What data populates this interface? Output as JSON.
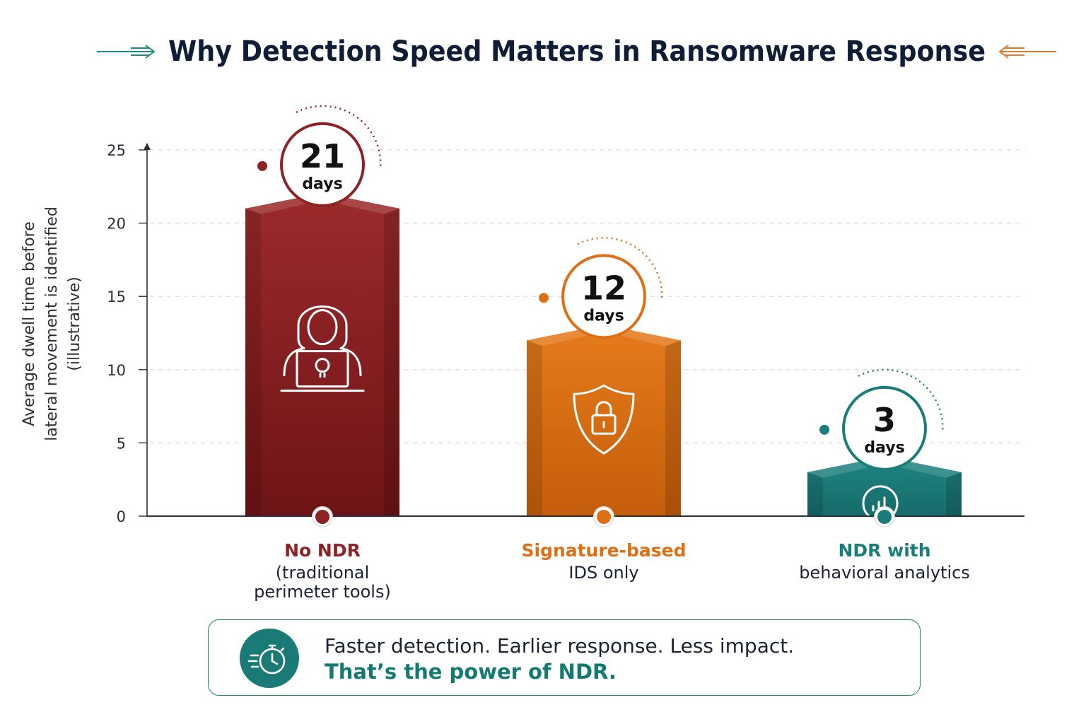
{
  "colors": {
    "title": "#0f1e36",
    "bar_red": "#8e2326",
    "bar_orange": "#dd6f14",
    "bar_teal": "#1a7d7a",
    "accent_teal": "#137a72",
    "accent_orange": "#e07a32"
  },
  "chart_data": {
    "type": "bar",
    "title": "Why Detection Speed Matters in Ransomware Response",
    "ylabel": [
      "Average dwell time before",
      "lateral movement is identified",
      "(illustrative)"
    ],
    "ylim": [
      0,
      25
    ],
    "yticks": [
      0,
      5,
      10,
      15,
      20,
      25
    ],
    "grid": true,
    "series": [
      {
        "values": [
          21,
          12,
          3
        ],
        "value_labels": [
          {
            "value": "21",
            "unit": "days"
          },
          {
            "value": "12",
            "unit": "days"
          },
          {
            "value": "3",
            "unit": "days"
          }
        ]
      }
    ],
    "categories": [
      {
        "line1": "No NDR",
        "line2": "(traditional",
        "line3": "perimeter tools)",
        "color": "#8e2326",
        "icon": "hacker-laptop-icon"
      },
      {
        "line1": "Signature-based",
        "line2": "IDS only",
        "line3": "",
        "color": "#dd6f14",
        "icon": "shield-lock-icon"
      },
      {
        "line1": "NDR with",
        "line2": "behavioral analytics",
        "line3": "",
        "color": "#1a7d7a",
        "icon": "magnifier-chart-icon"
      }
    ]
  },
  "banner": {
    "icon": "stopwatch-icon",
    "line1": "Faster detection. Earlier response. Less impact.",
    "line2": "That’s the power of NDR."
  }
}
